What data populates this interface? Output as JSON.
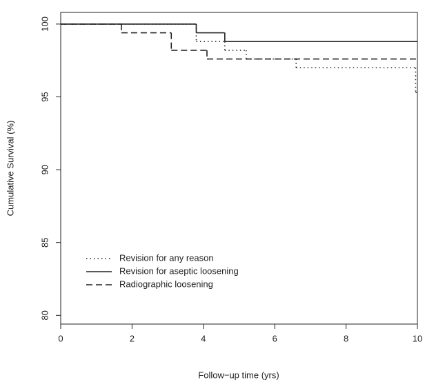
{
  "chart_data": {
    "type": "step",
    "x_label": "Follow−up time (yrs)",
    "y_label": "Cumulative Survival (%)",
    "xlim": [
      0,
      10
    ],
    "ylim": [
      79.4,
      100.8
    ],
    "xticks": [
      0,
      2,
      4,
      6,
      8,
      10
    ],
    "yticks": [
      80,
      85,
      90,
      95,
      100
    ],
    "legend": "bottom-left",
    "series": [
      {
        "name": "Revision for any reason",
        "color": "#222222",
        "linestyle": "dotted",
        "x": [
          0,
          3.8,
          4.6,
          5.2,
          6.6,
          9.95
        ],
        "values": [
          100,
          98.8,
          98.2,
          97.6,
          97.0,
          95.3
        ]
      },
      {
        "name": "Revision for aseptic loosening",
        "color": "#222222",
        "linestyle": "solid",
        "x": [
          0,
          3.8,
          4.6
        ],
        "values": [
          100,
          99.4,
          98.8
        ]
      },
      {
        "name": "Radiographic loosening",
        "color": "#222222",
        "linestyle": "dashed",
        "x": [
          0,
          1.7,
          3.1,
          4.1
        ],
        "values": [
          100,
          99.4,
          98.2,
          97.6
        ]
      }
    ]
  }
}
